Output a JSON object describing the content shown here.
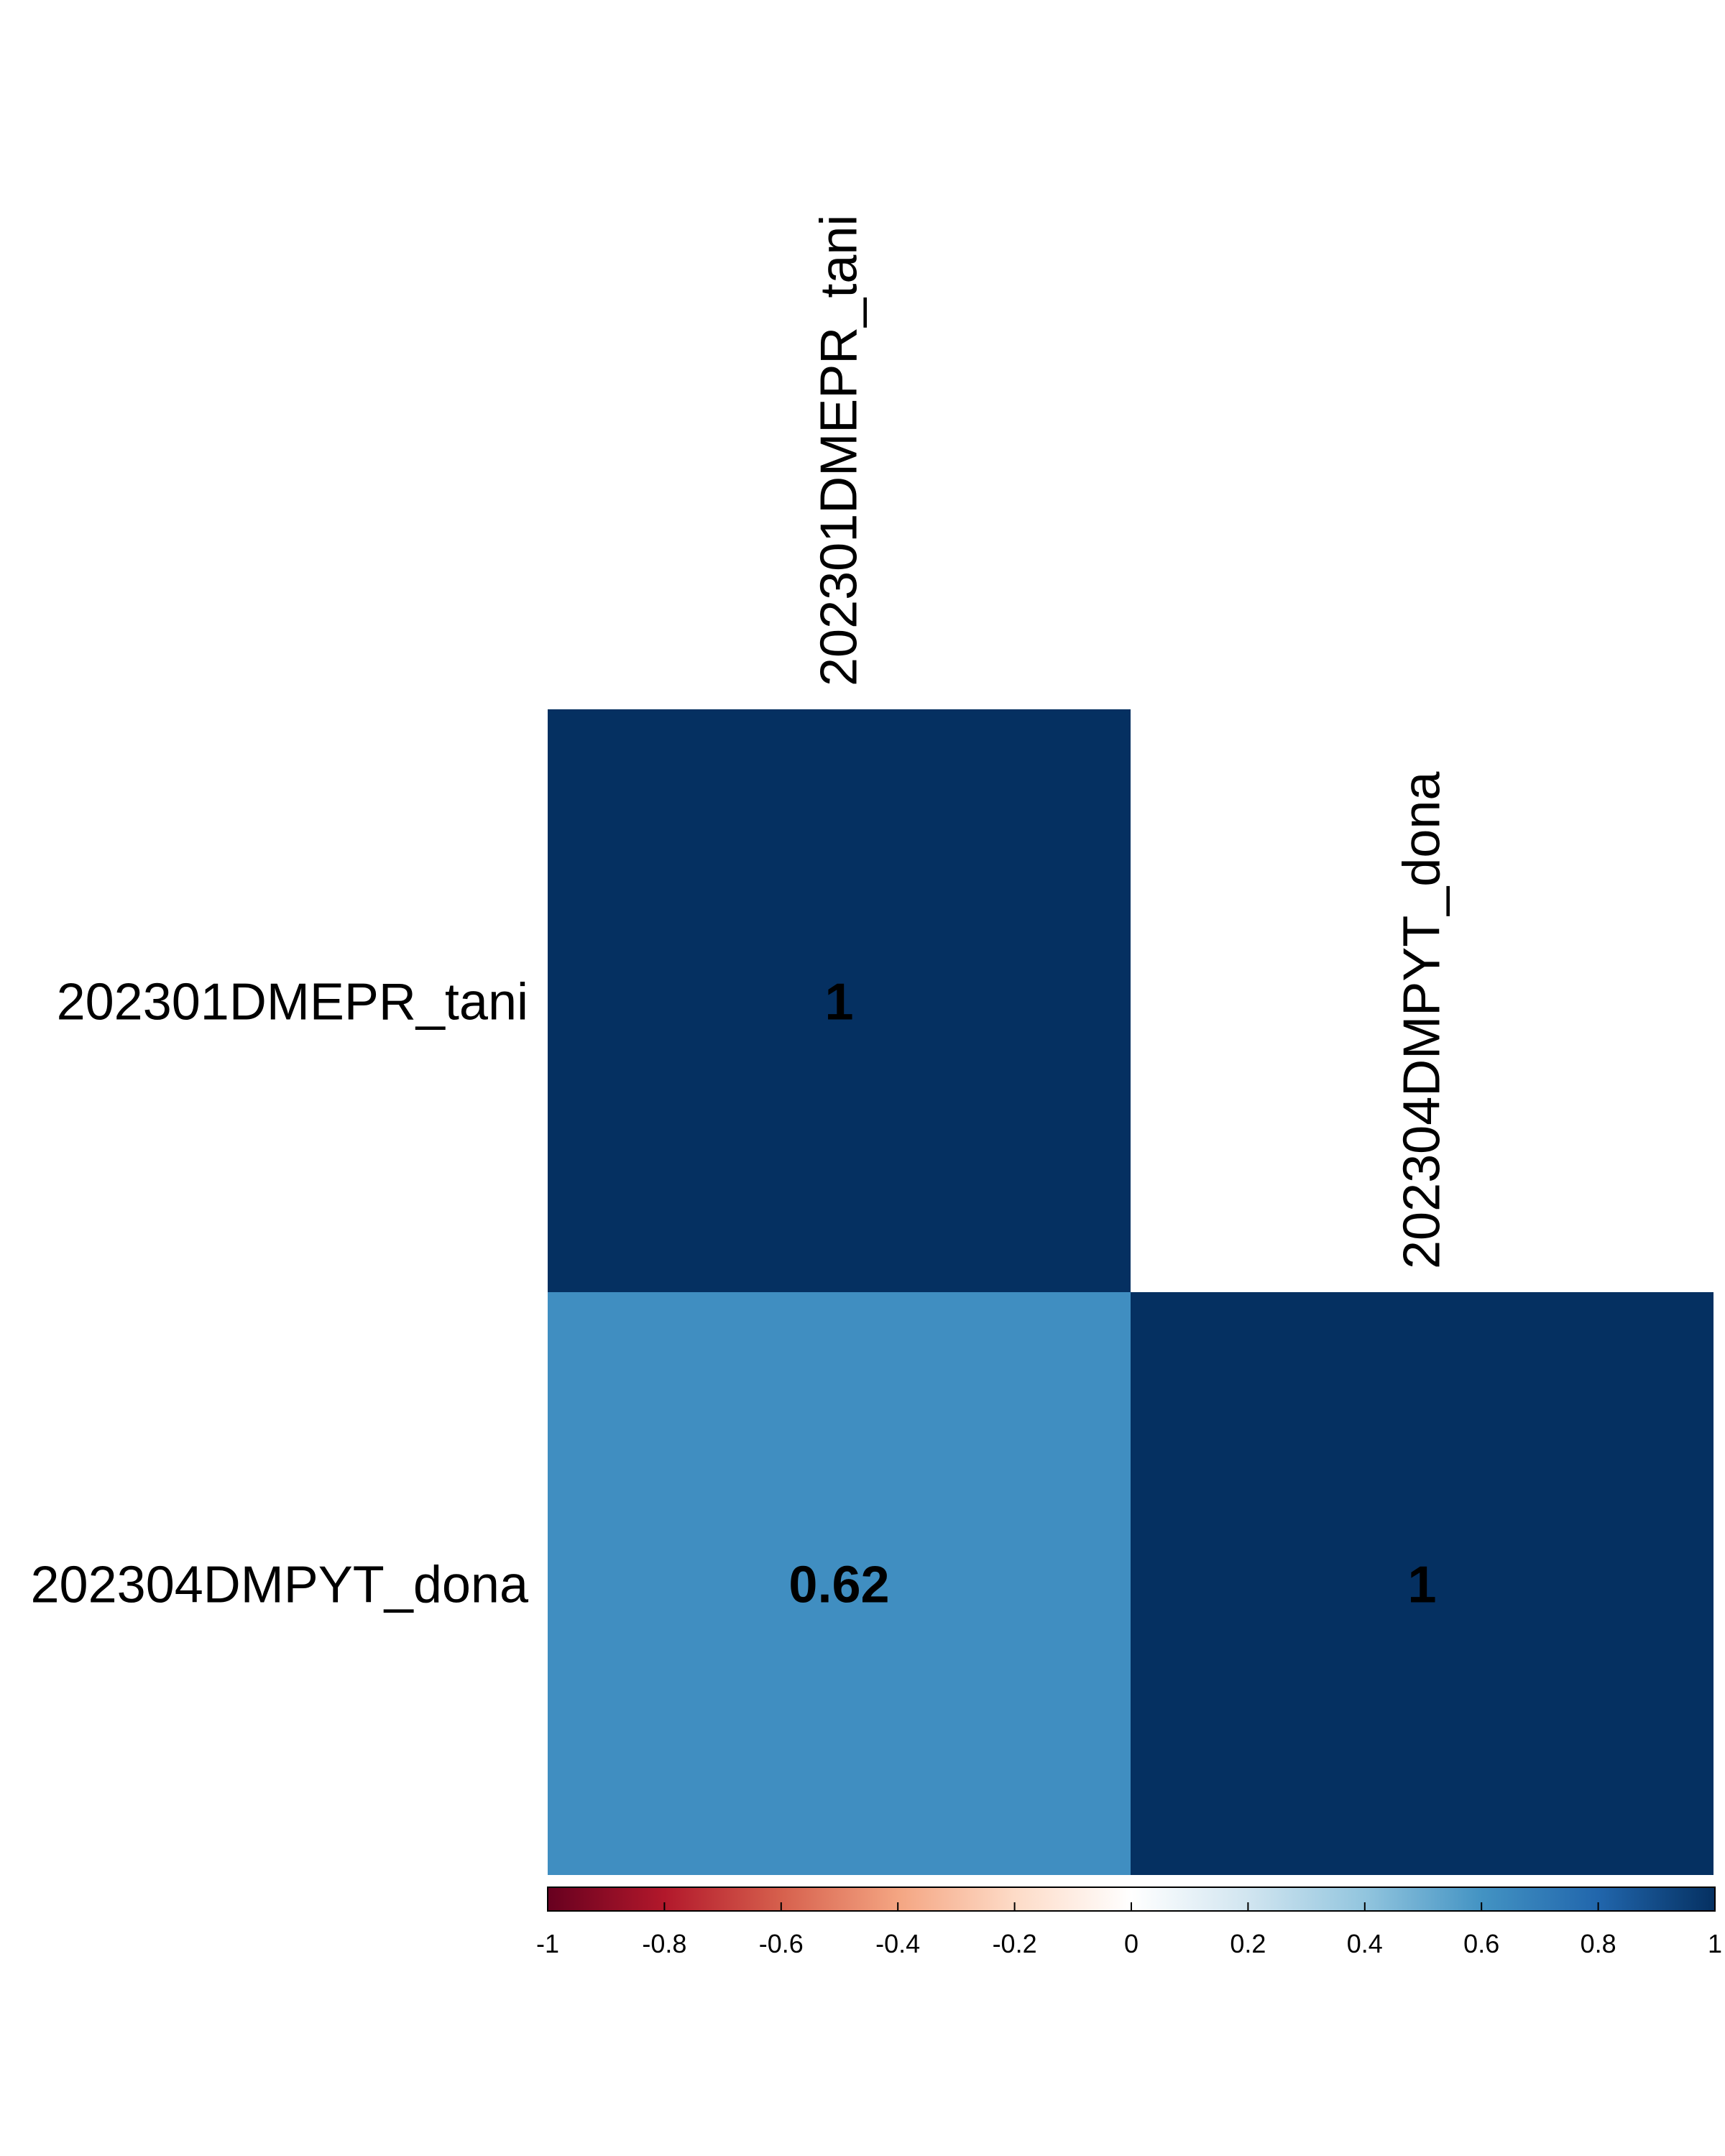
{
  "chart_data": {
    "type": "heatmap",
    "variables": [
      "202301DMEPR_tani",
      "202304DMPYT_dona"
    ],
    "cells": [
      {
        "row": 0,
        "col": 0,
        "value": 1,
        "label": "1"
      },
      {
        "row": 1,
        "col": 0,
        "value": 0.62,
        "label": "0.62"
      },
      {
        "row": 1,
        "col": 1,
        "value": 1,
        "label": "1"
      }
    ],
    "color_scale": {
      "range": [
        -1,
        1
      ],
      "stops": [
        "#67001f",
        "#b2182b",
        "#d6604d",
        "#f4a582",
        "#fddbc7",
        "#ffffff",
        "#d1e5f0",
        "#92c5de",
        "#4393c3",
        "#2166ac",
        "#053061"
      ],
      "ticks": [
        "-1",
        "-0.8",
        "-0.6",
        "-0.4",
        "-0.2",
        "0",
        "0.2",
        "0.4",
        "0.6",
        "0.8",
        "1"
      ]
    }
  }
}
